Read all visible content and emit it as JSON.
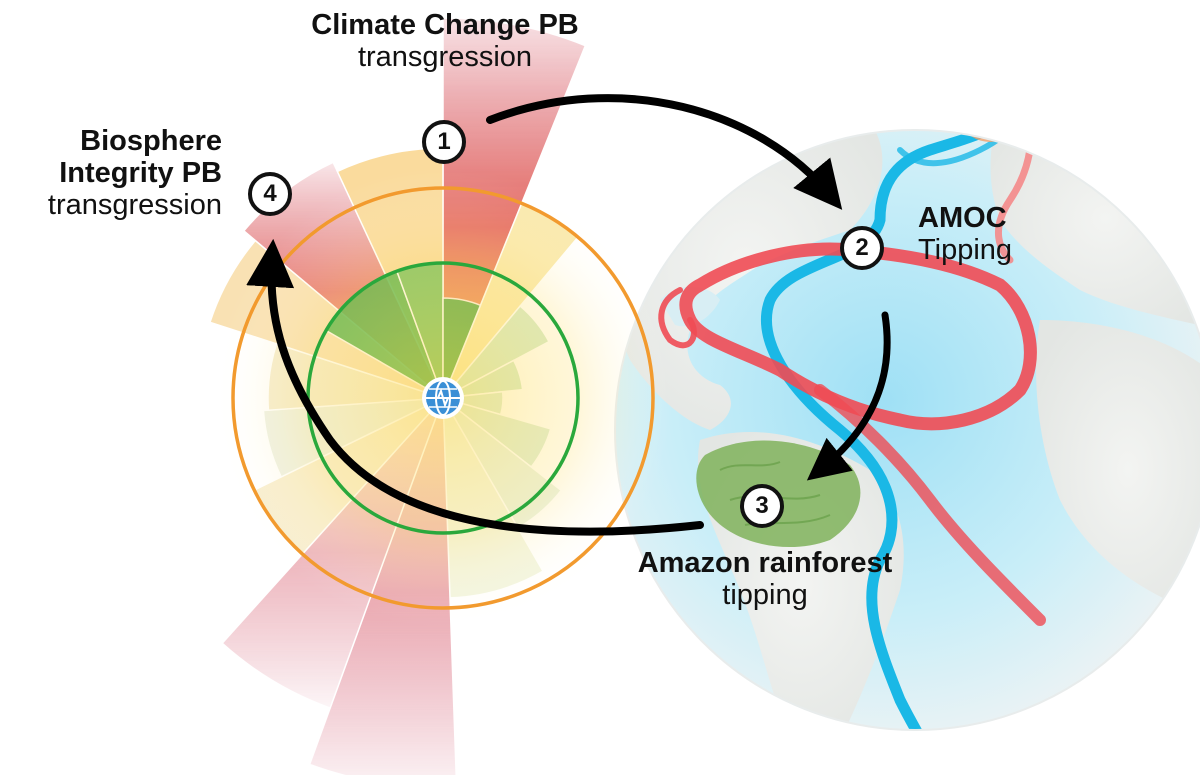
{
  "labels": {
    "climate": {
      "title": "Climate Change PB",
      "subtitle": "transgression"
    },
    "biosphere": {
      "title_line1": "Biosphere",
      "title_line2": "Integrity PB",
      "subtitle": "transgression"
    },
    "amoc": {
      "title": "AMOC",
      "subtitle": "Tipping"
    },
    "amazon": {
      "title": "Amazon rainforest",
      "subtitle": "tipping"
    }
  },
  "badges": [
    "1",
    "2",
    "3",
    "4"
  ],
  "colors": {
    "safe_green": "#2aa83c",
    "boundary_orange": "#f29a2e",
    "high_risk_red": "#c8283d",
    "warm_current": "#ef4b54",
    "cold_current": "#1ab8e6",
    "ocean": "#bfe8f5",
    "forest": "#7fb25a",
    "arrow": "#000000"
  },
  "icons": {
    "center": "globe-pulse-icon"
  }
}
